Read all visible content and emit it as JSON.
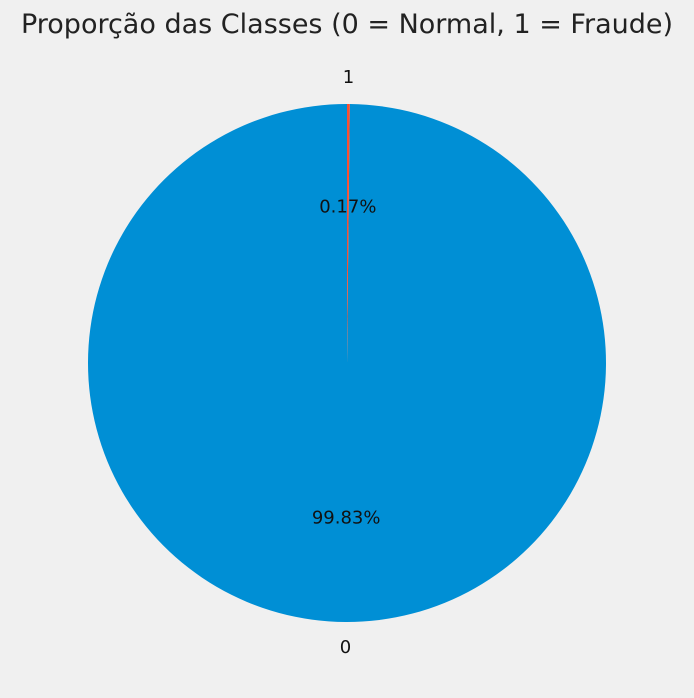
{
  "chart_data": {
    "type": "pie",
    "title": "Proporção das Classes (0 = Normal, 1 = Fraude)",
    "slices": [
      {
        "label": "0",
        "value": 99.83,
        "pct_label": "99.83%",
        "color": "#008fd5"
      },
      {
        "label": "1",
        "value": 0.17,
        "pct_label": "0.17%",
        "color": "#fc4f30"
      }
    ],
    "start_angle_deg": 90,
    "direction": "counterclockwise",
    "legend": "none"
  }
}
